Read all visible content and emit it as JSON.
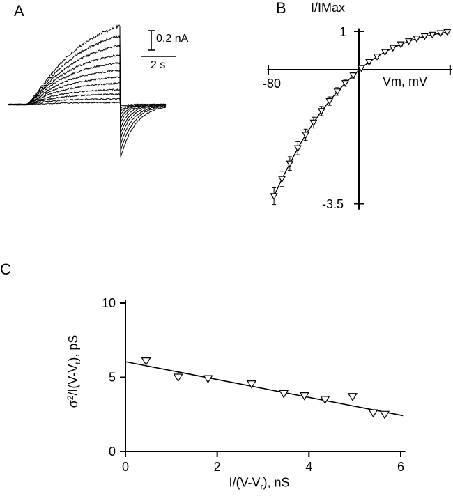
{
  "figure": {
    "background": "#ffffff",
    "ink_color": "#000000",
    "panels": {
      "a": {
        "label": "A"
      },
      "b": {
        "label": "B"
      },
      "c": {
        "label": "C"
      }
    }
  },
  "chart_data": [
    {
      "panel": "A",
      "type": "line",
      "description": "Family of slowly activating current traces during voltage steps followed by decaying inward tail currents after repolarization",
      "scale_bar": {
        "vertical_label": "0.2 nA",
        "horizontal_label": "2 s"
      },
      "step_duration_s": 5.4,
      "traces": {
        "count": 12,
        "plateau_nA": [
          0.96,
          0.82,
          0.69,
          0.57,
          0.47,
          0.38,
          0.3,
          0.23,
          0.16,
          0.11,
          0.06,
          0.02
        ],
        "tau_activation_s": [
          2.6,
          2.45,
          2.3,
          2.15,
          2.0,
          1.9,
          1.8,
          1.7,
          1.6,
          1.5,
          1.4,
          1.3
        ],
        "tail_fraction": 0.68,
        "tau_tail_s": [
          0.85,
          0.78,
          0.71,
          0.64,
          0.58,
          0.52,
          0.46,
          0.41,
          0.36,
          0.32,
          0.28,
          0.25
        ]
      }
    },
    {
      "panel": "B",
      "type": "scatter",
      "title": "I/IMax",
      "xlabel": "Vm, mV",
      "x_tick_labels": [
        "-80"
      ],
      "y_tick_labels": [
        "1",
        "-3.5"
      ],
      "xlim": [
        -81,
        82
      ],
      "ylim": [
        -3.65,
        1.08
      ],
      "marker": "open-down-triangle",
      "x": [
        -75,
        -68,
        -61,
        -54,
        -47,
        -40,
        -33,
        -26,
        -19,
        -12,
        -5,
        2,
        9,
        16,
        23,
        30,
        37,
        44,
        51,
        58,
        65,
        72,
        78
      ],
      "y": [
        -3.3,
        -2.85,
        -2.45,
        -2.05,
        -1.7,
        -1.38,
        -1.08,
        -0.82,
        -0.57,
        -0.35,
        -0.15,
        0.04,
        0.2,
        0.34,
        0.46,
        0.57,
        0.66,
        0.74,
        0.81,
        0.87,
        0.91,
        0.95,
        0.98
      ],
      "yerr": [
        0.22,
        0.2,
        0.18,
        0.17,
        0.15,
        0.14,
        0.12,
        0.11,
        0.1,
        0.08,
        0.07,
        0.05,
        0.05,
        0.04,
        0.04,
        0.04,
        0.04,
        0.03,
        0.03,
        0.03,
        0.03,
        0.03,
        0.03
      ]
    },
    {
      "panel": "C",
      "type": "scatter",
      "xlabel_parts": [
        "I/(V-V",
        "r",
        "),  nS"
      ],
      "ylabel_parts": [
        "σ",
        "2",
        "/I(V-V",
        "r",
        "),  pS"
      ],
      "xticks": [
        0,
        2,
        4,
        6
      ],
      "yticks": [
        0,
        5,
        10
      ],
      "xlim": [
        0,
        6.1
      ],
      "ylim": [
        0,
        10.2
      ],
      "marker": "open-down-triangle",
      "x": [
        0.45,
        1.15,
        1.8,
        2.75,
        3.45,
        3.9,
        4.35,
        4.95,
        5.4,
        5.65
      ],
      "y": [
        6.1,
        5.0,
        4.9,
        4.55,
        3.9,
        3.75,
        3.5,
        3.7,
        2.6,
        2.5
      ],
      "fit_line": {
        "x": [
          0,
          6.05
        ],
        "y": [
          6.05,
          2.42
        ]
      }
    }
  ]
}
